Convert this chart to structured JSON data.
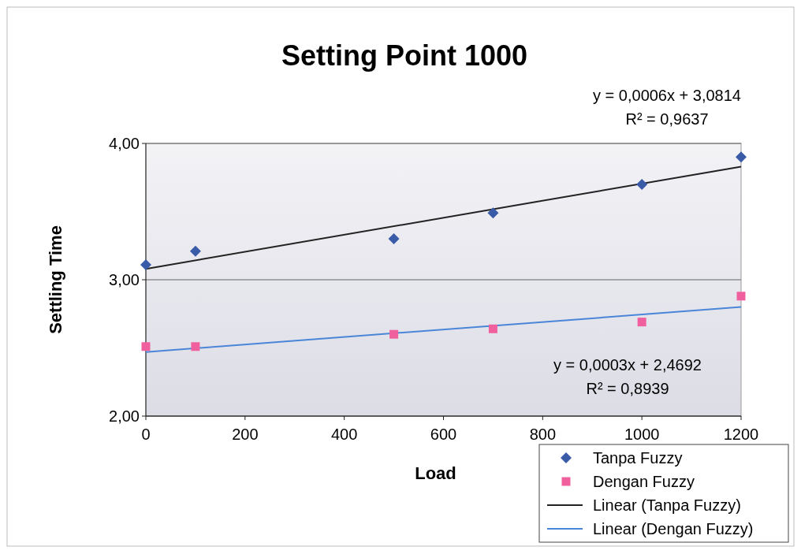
{
  "chart_data": {
    "type": "scatter",
    "title": "Setting Point 1000",
    "xlabel": "Load",
    "ylabel": "Settling Time",
    "xlim": [
      0,
      1200
    ],
    "xticks": [
      0,
      200,
      400,
      600,
      800,
      1000,
      1200
    ],
    "ylim": [
      2,
      4
    ],
    "yticks": [
      {
        "value": 2,
        "label": "2,00"
      },
      {
        "value": 3,
        "label": "3,00"
      },
      {
        "value": 4,
        "label": "4,00"
      }
    ],
    "grid": "y",
    "legend": "bottom right",
    "series": [
      {
        "name": "Tanpa Fuzzy",
        "marker": "diamond",
        "color": "#3a5ba8",
        "x": [
          0,
          100,
          500,
          700,
          1000,
          1200
        ],
        "values": [
          3.11,
          3.21,
          3.3,
          3.49,
          3.7,
          3.9
        ]
      },
      {
        "name": "Dengan Fuzzy",
        "marker": "square",
        "color": "#f0609e",
        "x": [
          0,
          100,
          500,
          700,
          1000,
          1200
        ],
        "values": [
          2.51,
          2.51,
          2.6,
          2.64,
          2.69,
          2.88
        ]
      },
      {
        "name": "Linear (Tanpa Fuzzy)",
        "type": "line",
        "color": "#222222",
        "x": [
          0,
          1200
        ],
        "values": [
          3.08,
          3.83
        ]
      },
      {
        "name": "Linear (Dengan Fuzzy)",
        "type": "line",
        "color": "#4a86d8",
        "x": [
          0,
          1200
        ],
        "values": [
          2.47,
          2.8
        ]
      }
    ],
    "annotations": [
      "y = 0,0006x + 3,0814",
      "R² = 0,9637",
      "y = 0,0003x + 2,4692",
      "R² = 0,8939"
    ]
  }
}
